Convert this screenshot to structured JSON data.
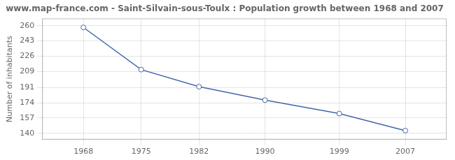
{
  "chart_data": {
    "type": "line",
    "title": "www.map-france.com - Saint-Silvain-sous-Toulx : Population growth between 1968 and 2007",
    "ylabel": "Number of inhabitants",
    "x": [
      1968,
      1975,
      1982,
      1990,
      1999,
      2007
    ],
    "values": [
      258,
      211,
      192,
      177,
      162,
      143
    ],
    "color": "#4466aa",
    "marker": "circle",
    "xlim": [
      1963,
      2012
    ],
    "xticks": [
      1968,
      1975,
      1982,
      1990,
      1999,
      2007
    ],
    "ylim": [
      133,
      268
    ],
    "yticks": [
      140,
      157,
      174,
      191,
      209,
      226,
      243,
      260
    ],
    "grid": true
  }
}
